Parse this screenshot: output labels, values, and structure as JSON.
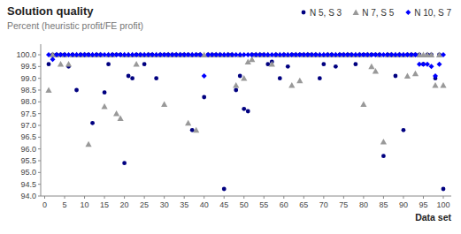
{
  "chart_data": {
    "type": "scatter",
    "title": "Solution quality",
    "subtitle": "Percent (heuristic profit/FE profit)",
    "x_label": "Data set",
    "xlim": [
      -1,
      102
    ],
    "ylim": [
      94.0,
      100.45
    ],
    "xticks": [
      0,
      5,
      10,
      15,
      20,
      25,
      30,
      35,
      40,
      45,
      50,
      55,
      60,
      65,
      70,
      75,
      80,
      85,
      90,
      95,
      100
    ],
    "yticks": [
      {
        "value": 94.0,
        "label": "94.0"
      },
      94.5,
      {
        "value": 95.0,
        "label": "95.0"
      },
      95.5,
      {
        "value": 96.0,
        "label": "96.0"
      },
      96.5,
      {
        "value": 97.0,
        "label": "97.0"
      },
      97.5,
      {
        "value": 98.0,
        "label": "98.0"
      },
      98.5,
      {
        "value": 99.0,
        "label": "99.0"
      },
      99.5,
      {
        "value": 100.0,
        "label": "100.0"
      }
    ],
    "grid": false,
    "legend": "upper right",
    "series": [
      {
        "name": "N 5, S 3",
        "color": "#000080",
        "marker": "circle",
        "x": [
          1,
          2,
          3,
          4,
          5,
          6,
          7,
          8,
          9,
          10,
          11,
          12,
          13,
          14,
          15,
          16,
          17,
          18,
          19,
          20,
          21,
          22,
          23,
          24,
          25,
          26,
          27,
          28,
          29,
          30,
          31,
          32,
          33,
          34,
          35,
          36,
          37,
          38,
          39,
          40,
          41,
          42,
          43,
          44,
          45,
          46,
          47,
          48,
          49,
          50,
          51,
          52,
          53,
          54,
          55,
          56,
          57,
          58,
          59,
          60,
          61,
          62,
          63,
          64,
          65,
          66,
          67,
          68,
          69,
          70,
          71,
          72,
          73,
          74,
          75,
          76,
          77,
          78,
          79,
          80,
          81,
          82,
          83,
          84,
          85,
          86,
          87,
          88,
          89,
          90,
          91,
          92,
          93,
          94,
          95,
          96,
          97,
          98,
          99,
          100
        ],
        "values": [
          99.6,
          100.0,
          100.0,
          100.0,
          100.0,
          99.5,
          100.0,
          98.5,
          100.0,
          100.0,
          100.0,
          97.1,
          100.0,
          100.0,
          98.4,
          99.6,
          100.0,
          100.0,
          100.0,
          95.4,
          99.1,
          99.0,
          100.0,
          100.0,
          99.6,
          100.0,
          100.0,
          99.0,
          100.0,
          100.0,
          100.0,
          100.0,
          100.0,
          100.0,
          100.0,
          100.0,
          96.8,
          100.0,
          100.0,
          98.2,
          100.0,
          100.0,
          100.0,
          100.0,
          94.3,
          100.0,
          100.0,
          98.5,
          99.1,
          97.7,
          97.6,
          100.0,
          100.0,
          100.0,
          100.0,
          99.6,
          99.7,
          100.0,
          99.0,
          100.0,
          99.5,
          100.0,
          100.0,
          100.0,
          100.0,
          100.0,
          100.0,
          100.0,
          99.0,
          99.6,
          100.0,
          100.0,
          99.5,
          100.0,
          100.0,
          100.0,
          100.0,
          99.6,
          100.0,
          100.0,
          100.0,
          100.0,
          100.0,
          100.0,
          95.7,
          100.0,
          100.0,
          99.1,
          100.0,
          96.8,
          100.0,
          100.0,
          100.0,
          100.0,
          99.6,
          100.0,
          100.0,
          99.0,
          100.0,
          94.3
        ]
      },
      {
        "name": "N 7, S 5",
        "color": "#999999",
        "marker": "triangle",
        "x": [
          1,
          2,
          3,
          4,
          5,
          6,
          7,
          8,
          9,
          10,
          11,
          12,
          13,
          14,
          15,
          16,
          17,
          18,
          19,
          20,
          21,
          22,
          23,
          24,
          25,
          26,
          27,
          28,
          29,
          30,
          31,
          32,
          33,
          34,
          35,
          36,
          37,
          38,
          39,
          40,
          41,
          42,
          43,
          44,
          45,
          46,
          47,
          48,
          49,
          50,
          51,
          52,
          53,
          54,
          55,
          56,
          57,
          58,
          59,
          60,
          61,
          62,
          63,
          64,
          65,
          66,
          67,
          68,
          69,
          70,
          71,
          72,
          73,
          74,
          75,
          76,
          77,
          78,
          79,
          80,
          81,
          82,
          83,
          84,
          85,
          86,
          87,
          88,
          89,
          90,
          91,
          92,
          93,
          94,
          95,
          96,
          97,
          98,
          99,
          100
        ],
        "values": [
          98.5,
          100.0,
          100.0,
          99.6,
          100.0,
          99.6,
          100.0,
          100.0,
          100.0,
          100.0,
          96.2,
          100.0,
          100.0,
          100.0,
          97.8,
          100.0,
          100.0,
          97.5,
          97.3,
          100.0,
          100.0,
          100.0,
          99.6,
          100.0,
          100.0,
          100.0,
          100.0,
          100.0,
          100.0,
          97.9,
          100.0,
          100.0,
          100.0,
          100.0,
          100.0,
          97.1,
          100.0,
          96.8,
          100.0,
          100.0,
          100.0,
          100.0,
          100.0,
          100.0,
          100.0,
          100.0,
          100.0,
          98.7,
          100.0,
          99.0,
          99.7,
          99.8,
          100.0,
          100.0,
          100.0,
          100.0,
          99.6,
          100.0,
          100.0,
          100.0,
          100.0,
          98.7,
          100.0,
          98.9,
          100.0,
          100.0,
          100.0,
          100.0,
          100.0,
          100.0,
          100.0,
          100.0,
          100.0,
          100.0,
          100.0,
          100.0,
          100.0,
          100.0,
          100.0,
          97.9,
          100.0,
          99.5,
          99.3,
          100.0,
          96.3,
          100.0,
          100.0,
          100.0,
          100.0,
          100.0,
          99.1,
          100.0,
          99.2,
          100.0,
          100.0,
          100.0,
          100.0,
          98.7,
          100.0,
          98.7
        ]
      },
      {
        "name": "N 10, S 7",
        "color": "#0000ff",
        "marker": "diamond",
        "x": [
          1,
          2,
          3,
          4,
          5,
          6,
          7,
          8,
          9,
          10,
          11,
          12,
          13,
          14,
          15,
          16,
          17,
          18,
          19,
          20,
          21,
          22,
          23,
          24,
          25,
          26,
          27,
          28,
          29,
          30,
          31,
          32,
          33,
          34,
          35,
          36,
          37,
          38,
          39,
          40,
          41,
          42,
          43,
          44,
          45,
          46,
          47,
          48,
          49,
          50,
          51,
          52,
          53,
          54,
          55,
          56,
          57,
          58,
          59,
          60,
          61,
          62,
          63,
          64,
          65,
          66,
          67,
          68,
          69,
          70,
          71,
          72,
          73,
          74,
          75,
          76,
          77,
          78,
          79,
          80,
          81,
          82,
          83,
          84,
          85,
          86,
          87,
          88,
          89,
          90,
          91,
          92,
          93,
          94,
          95,
          96,
          97,
          98,
          99,
          100
        ],
        "values": [
          100.0,
          99.8,
          100.0,
          100.0,
          100.0,
          100.0,
          100.0,
          100.0,
          100.0,
          100.0,
          100.0,
          100.0,
          100.0,
          100.0,
          100.0,
          100.0,
          100.0,
          100.0,
          100.0,
          100.0,
          100.0,
          100.0,
          100.0,
          100.0,
          100.0,
          100.0,
          100.0,
          100.0,
          100.0,
          100.0,
          100.0,
          100.0,
          100.0,
          100.0,
          100.0,
          100.0,
          100.0,
          100.0,
          100.0,
          99.1,
          100.0,
          100.0,
          100.0,
          100.0,
          100.0,
          100.0,
          100.0,
          100.0,
          100.0,
          100.0,
          100.0,
          100.0,
          100.0,
          100.0,
          100.0,
          100.0,
          100.0,
          100.0,
          100.0,
          100.0,
          100.0,
          100.0,
          100.0,
          100.0,
          100.0,
          100.0,
          100.0,
          100.0,
          100.0,
          100.0,
          100.0,
          100.0,
          100.0,
          100.0,
          100.0,
          100.0,
          100.0,
          100.0,
          100.0,
          100.0,
          100.0,
          100.0,
          100.0,
          100.0,
          100.0,
          100.0,
          100.0,
          100.0,
          100.0,
          100.0,
          100.0,
          100.0,
          100.0,
          99.6,
          99.6,
          99.6,
          99.5,
          99.1,
          99.6,
          100.0
        ]
      }
    ]
  }
}
